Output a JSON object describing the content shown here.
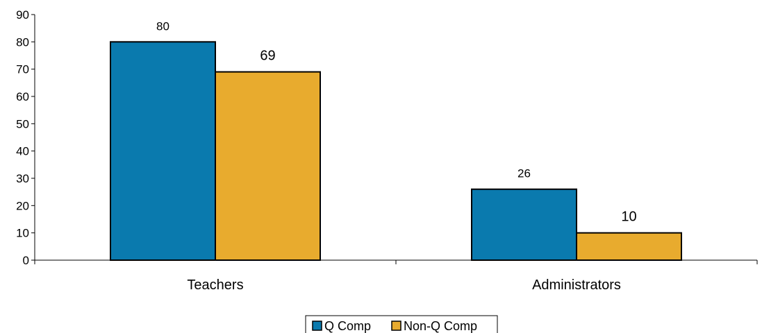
{
  "chart_data": {
    "type": "bar",
    "categories": [
      "Teachers",
      "Administrators"
    ],
    "series": [
      {
        "name": "Q Comp",
        "values": [
          80,
          26
        ],
        "color": "#0a7aae"
      },
      {
        "name": "Non-Q Comp",
        "values": [
          69,
          10
        ],
        "color": "#e8ab2e"
      }
    ],
    "ylim": [
      0,
      90
    ],
    "yticks": [
      "0",
      "10",
      "20",
      "30",
      "40",
      "50",
      "60",
      "70",
      "80",
      "90"
    ],
    "title": "",
    "xlabel": "",
    "ylabel": "",
    "grid": false,
    "legend_position": "bottom-center"
  }
}
